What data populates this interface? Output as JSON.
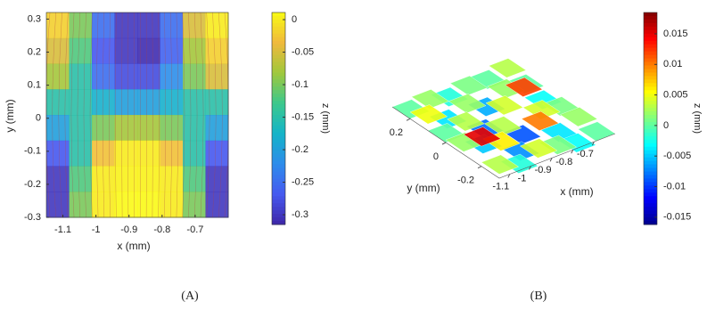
{
  "chart_data": [
    {
      "type": "heatmap",
      "colormap": "parula",
      "xlabel": "x (mm)",
      "ylabel": "y (mm)",
      "colorbar_label": "z (mm)",
      "caption": "(A)",
      "xlim": [
        -1.15,
        -0.6
      ],
      "xticks": [
        -1.1,
        -1,
        -0.9,
        -0.8,
        -0.7
      ],
      "ylim": [
        -0.3,
        0.32
      ],
      "yticks": [
        -0.3,
        -0.2,
        -0.1,
        0,
        0.1,
        0.2,
        0.3
      ],
      "clim": [
        -0.315,
        0.011
      ],
      "cticks": [
        -0.3,
        -0.25,
        -0.2,
        -0.15,
        -0.1,
        -0.05,
        0
      ],
      "z": [
        [
          -0.02,
          -0.1,
          -0.25,
          -0.3,
          -0.3,
          -0.25,
          -0.05,
          0
        ],
        [
          -0.05,
          -0.12,
          -0.27,
          -0.3,
          -0.31,
          -0.26,
          -0.08,
          -0.02
        ],
        [
          -0.08,
          -0.15,
          -0.25,
          -0.28,
          -0.28,
          -0.22,
          -0.1,
          -0.05
        ],
        [
          -0.15,
          -0.15,
          -0.18,
          -0.2,
          -0.2,
          -0.18,
          -0.15,
          -0.15
        ],
        [
          -0.2,
          -0.15,
          -0.1,
          -0.08,
          -0.08,
          -0.1,
          -0.15,
          -0.2
        ],
        [
          -0.27,
          -0.15,
          -0.03,
          0,
          0,
          -0.03,
          -0.15,
          -0.27
        ],
        [
          -0.3,
          -0.12,
          0,
          0.005,
          0.005,
          0,
          -0.12,
          -0.3
        ],
        [
          -0.3,
          -0.1,
          0,
          0.01,
          0.01,
          0,
          -0.1,
          -0.3
        ]
      ]
    },
    {
      "type": "surface3d",
      "colormap": "jet",
      "xlabel": "x (mm)",
      "ylabel": "y (mm)",
      "colorbar_label": "z (mm)",
      "caption": "(B)",
      "xlim": [
        -1.15,
        -0.6
      ],
      "xticks": [
        -1.1,
        -1,
        -0.9,
        -0.8,
        -0.7
      ],
      "ylim": [
        -0.3,
        0.3
      ],
      "yticks": [
        -0.2,
        0,
        0.2
      ],
      "clim": [
        -0.0162,
        0.0185
      ],
      "cticks": [
        -0.015,
        -0.01,
        -0.005,
        0,
        0.005,
        0.01,
        0.015
      ],
      "z": [
        [
          0,
          0.002,
          -0.002,
          0.001,
          0,
          0.003
        ],
        [
          0.005,
          -0.004,
          0.002,
          -0.006,
          0.002,
          0
        ],
        [
          0,
          0.003,
          -0.008,
          0.004,
          0.012,
          -0.003
        ],
        [
          0.002,
          -0.005,
          0.003,
          -0.009,
          0.004,
          0.001
        ],
        [
          0.015,
          0.006,
          -0.007,
          0.01,
          -0.004,
          0.002
        ],
        [
          0.003,
          -0.002,
          0.004,
          0.001,
          -0.003,
          0
        ]
      ]
    }
  ]
}
